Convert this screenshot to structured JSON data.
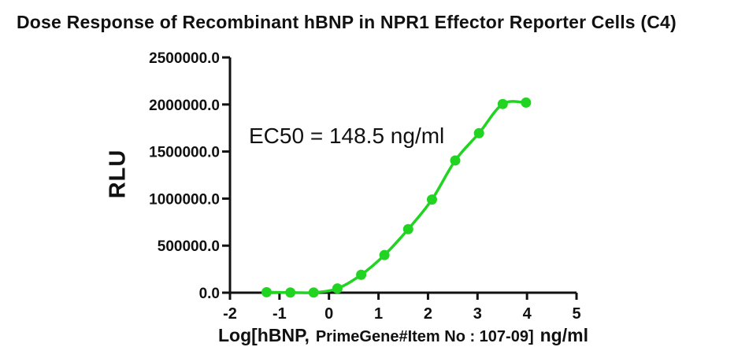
{
  "title": "Dose Response of Recombinant hBNP in NPR1 Effector Reporter Cells (C4)",
  "annotation": {
    "ec50_text": "EC50 = 148.5 ng/ml"
  },
  "axes": {
    "y_label": "RLU",
    "x_label_part1": "Log[hBNP,",
    "x_label_part2": "PrimeGene#Item No : 107-09]",
    "x_label_part3": "ng/ml"
  },
  "colors": {
    "curve_green": "#22d422",
    "axis_black": "#111111",
    "background": "#ffffff"
  },
  "chart_data": {
    "type": "scatter",
    "title": "Dose Response of Recombinant hBNP in NPR1 Effector Reporter Cells (C4)",
    "xlabel": "Log[hBNP, PrimeGene#Item No : 107-09] ng/ml",
    "ylabel": "RLU",
    "annotation": "EC50 = 148.5 ng/ml",
    "ec50_ng_ml": 148.5,
    "x": [
      -1.26,
      -0.78,
      -0.31,
      0.17,
      0.65,
      1.12,
      1.6,
      2.08,
      2.55,
      3.03,
      3.51,
      3.98
    ],
    "y": [
      5000,
      2000,
      2000,
      45000,
      190000,
      400000,
      675000,
      990000,
      1405000,
      1695000,
      2005000,
      2020000
    ],
    "xlim": [
      -2,
      5
    ],
    "ylim": [
      0,
      2500000
    ],
    "xticks": [
      -2,
      -1,
      0,
      1,
      2,
      3,
      4,
      5
    ],
    "xtick_labels": [
      "-2",
      "-1",
      "0",
      "1",
      "2",
      "3",
      "4",
      "5"
    ],
    "yticks": [
      0,
      500000,
      1000000,
      1500000,
      2000000,
      2500000
    ],
    "ytick_labels": [
      "0.0",
      "500000.0",
      "1000000.0",
      "1500000.0",
      "2000000.0",
      "2500000.0"
    ],
    "grid": false,
    "legend": false,
    "curve_connects_points": true
  }
}
